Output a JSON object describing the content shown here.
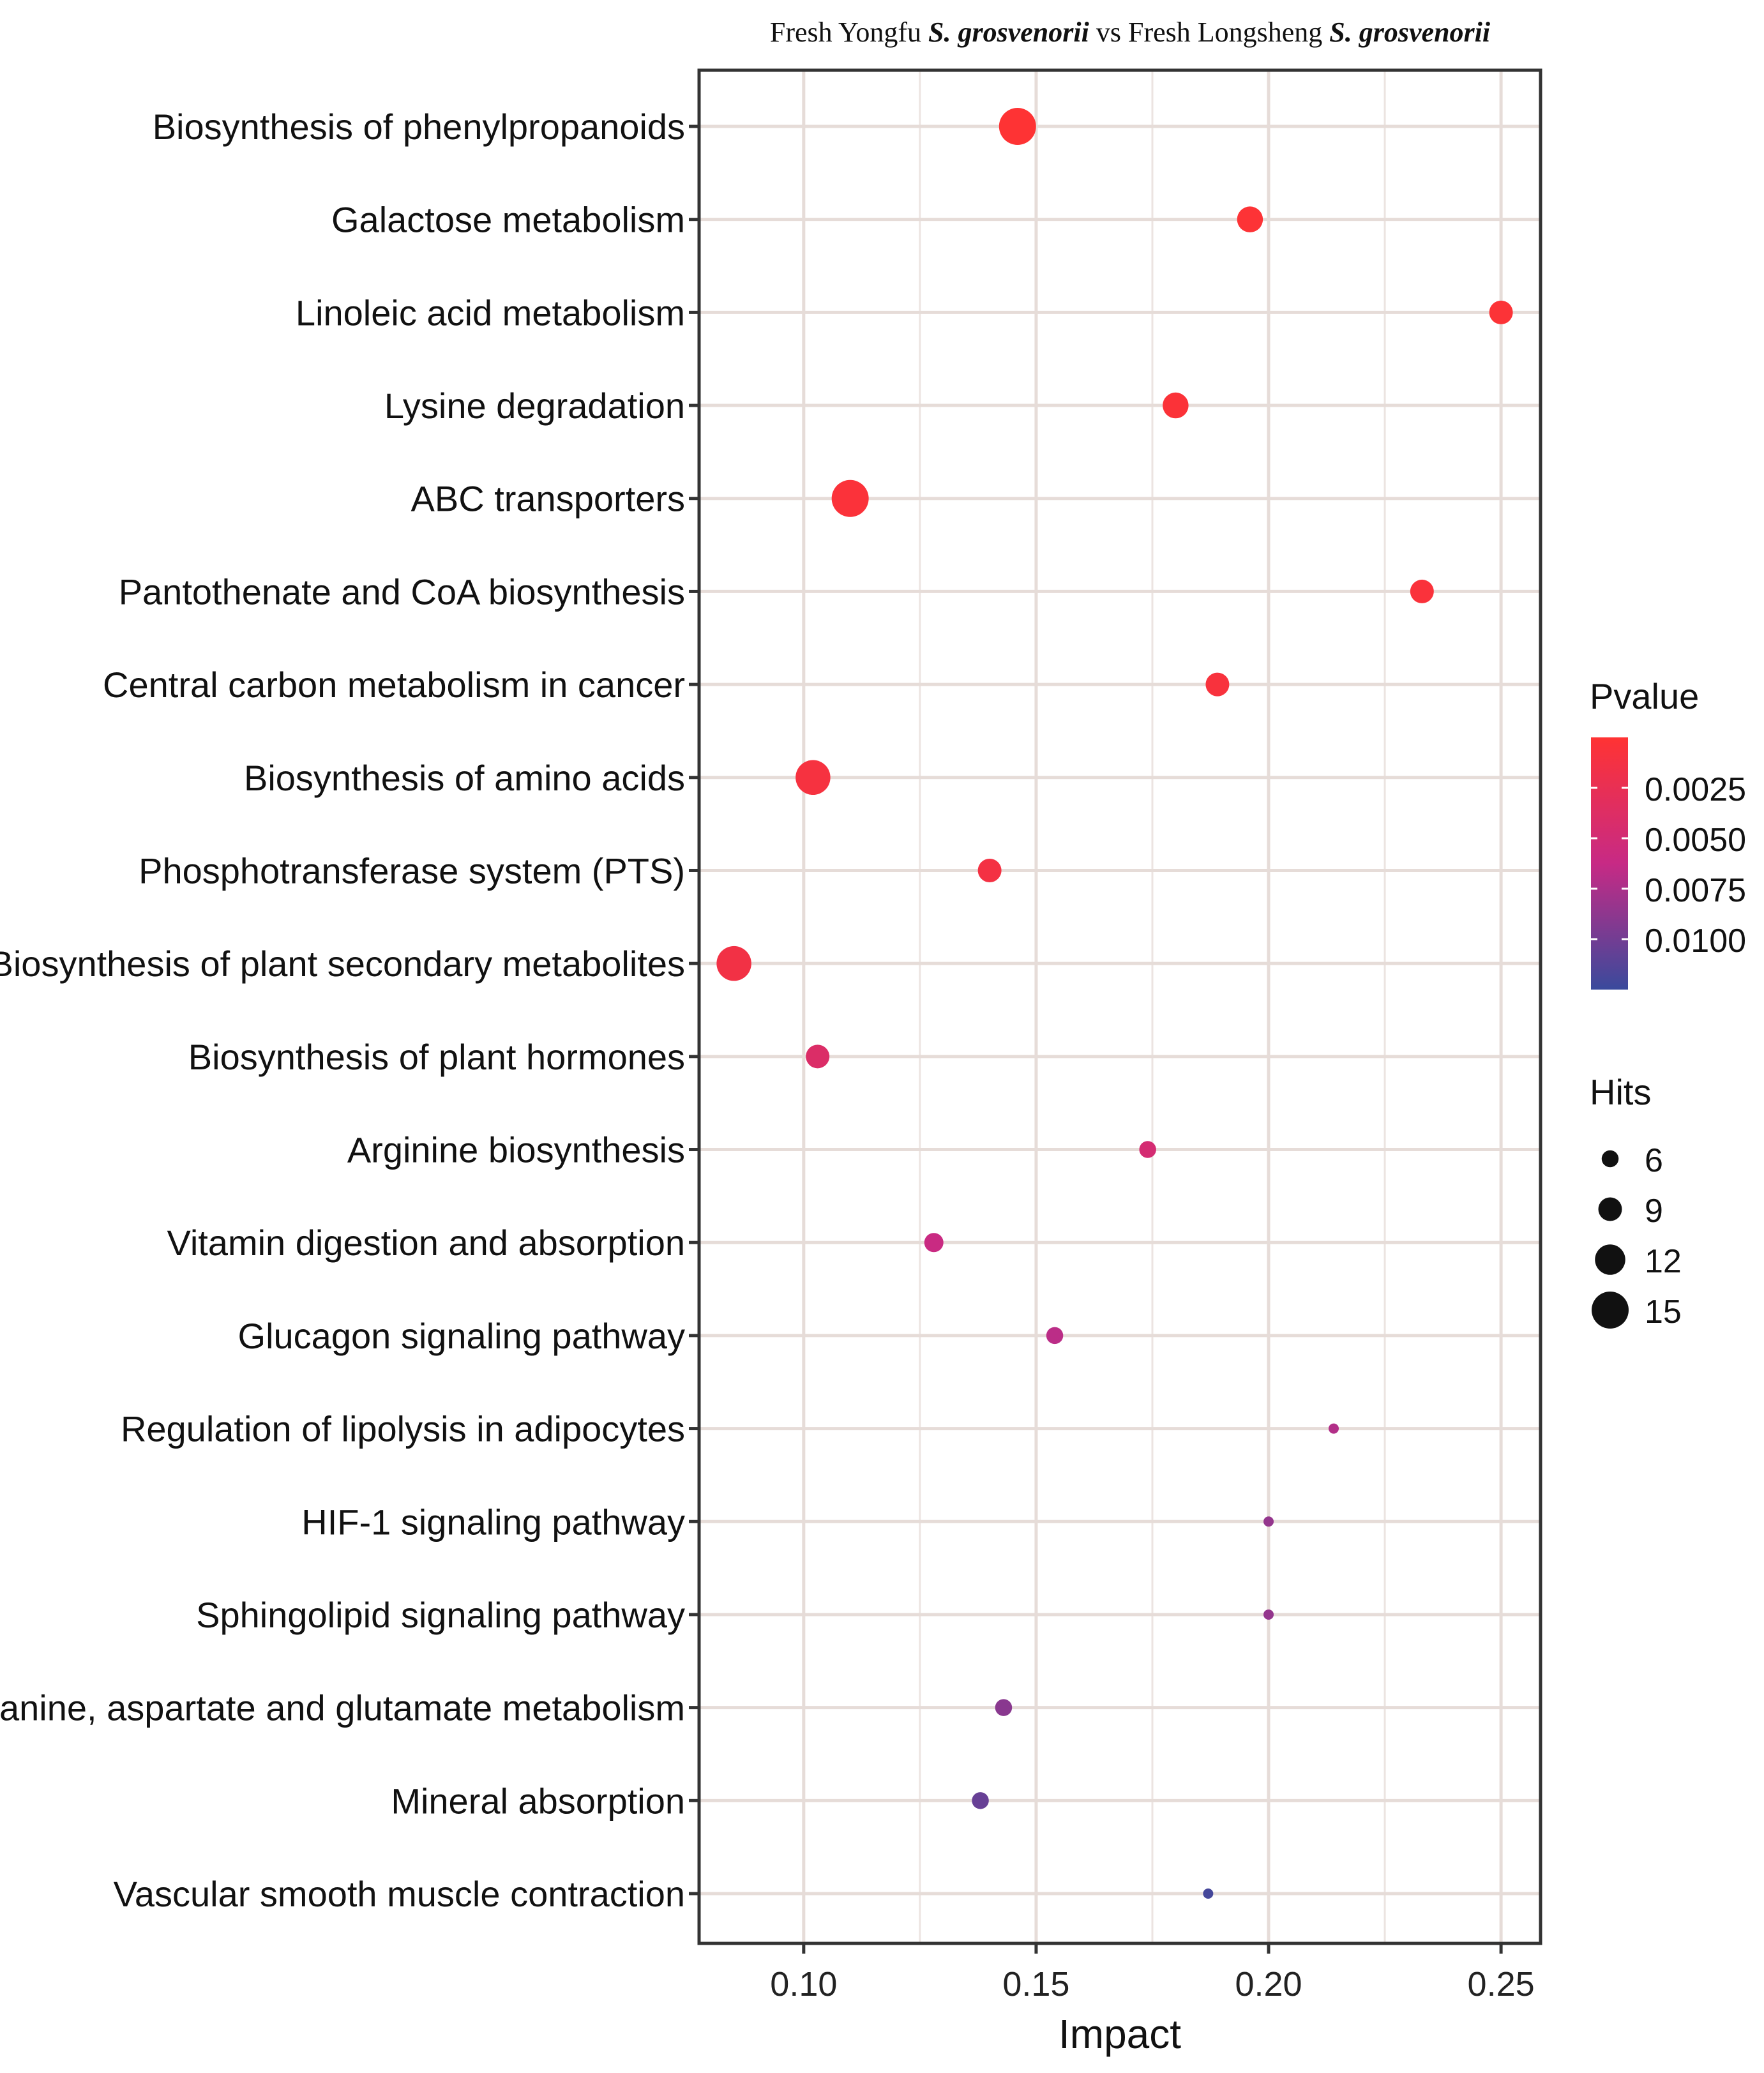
{
  "chart_data": {
    "type": "scatter",
    "title_parts": [
      {
        "text": "Fresh Yongfu ",
        "style": "normal"
      },
      {
        "text": "S. grosvenorii",
        "style": "bold-italic"
      },
      {
        "text": " vs Fresh Longsheng ",
        "style": "normal"
      },
      {
        "text": "S. grosvenorii",
        "style": "bold-italic"
      }
    ],
    "xlabel": "Impact",
    "ylabel": "",
    "xlim": [
      0.0775,
      0.2585
    ],
    "x_ticks": [
      0.1,
      0.15,
      0.2,
      0.25
    ],
    "x_tick_labels": [
      "0.10",
      "0.15",
      "0.20",
      "0.25"
    ],
    "grid": true,
    "points": [
      {
        "pathway": "Biosynthesis of phenylpropanoids",
        "impact": 0.146,
        "pvalue": 0.0001,
        "hits": 15
      },
      {
        "pathway": "Galactose metabolism",
        "impact": 0.196,
        "pvalue": 0.0002,
        "hits": 10
      },
      {
        "pathway": "Linoleic acid metabolism",
        "impact": 0.25,
        "pvalue": 0.0003,
        "hits": 9
      },
      {
        "pathway": "Lysine degradation",
        "impact": 0.18,
        "pvalue": 0.0004,
        "hits": 10
      },
      {
        "pathway": "ABC transporters",
        "impact": 0.11,
        "pvalue": 0.0005,
        "hits": 15
      },
      {
        "pathway": "Pantothenate and CoA biosynthesis",
        "impact": 0.233,
        "pvalue": 0.0006,
        "hits": 9
      },
      {
        "pathway": "Central carbon metabolism in cancer",
        "impact": 0.189,
        "pvalue": 0.0008,
        "hits": 9
      },
      {
        "pathway": "Biosynthesis of amino acids",
        "impact": 0.102,
        "pvalue": 0.001,
        "hits": 14
      },
      {
        "pathway": "Phosphotransferase system (PTS)",
        "impact": 0.14,
        "pvalue": 0.0012,
        "hits": 9
      },
      {
        "pathway": "Biosynthesis of plant secondary metabolites",
        "impact": 0.085,
        "pvalue": 0.0014,
        "hits": 14
      },
      {
        "pathway": "Biosynthesis of plant hormones",
        "impact": 0.103,
        "pvalue": 0.004,
        "hits": 9
      },
      {
        "pathway": "Arginine biosynthesis",
        "impact": 0.174,
        "pvalue": 0.0048,
        "hits": 6
      },
      {
        "pathway": "Vitamin digestion and absorption",
        "impact": 0.128,
        "pvalue": 0.006,
        "hits": 7
      },
      {
        "pathway": "Glucagon signaling pathway",
        "impact": 0.154,
        "pvalue": 0.0068,
        "hits": 6
      },
      {
        "pathway": "Regulation of lipolysis in adipocytes",
        "impact": 0.214,
        "pvalue": 0.0072,
        "hits": 3
      },
      {
        "pathway": "HIF-1 signaling pathway",
        "impact": 0.2,
        "pvalue": 0.0085,
        "hits": 3
      },
      {
        "pathway": "Sphingolipid signaling pathway",
        "impact": 0.2,
        "pvalue": 0.0085,
        "hits": 3
      },
      {
        "pathway": "Alanine, aspartate and glutamate metabolism",
        "impact": 0.143,
        "pvalue": 0.009,
        "hits": 6
      },
      {
        "pathway": "Mineral absorption",
        "impact": 0.138,
        "pvalue": 0.0105,
        "hits": 6
      },
      {
        "pathway": "Vascular smooth muscle contraction",
        "impact": 0.187,
        "pvalue": 0.012,
        "hits": 3
      }
    ],
    "color_legend": {
      "title": "Pvalue",
      "range": [
        0.0,
        0.0125
      ],
      "breaks": [
        0.0025,
        0.005,
        0.0075,
        0.01
      ],
      "break_labels": [
        "0.0025",
        "0.0050",
        "0.0075",
        "0.0100"
      ],
      "low_color": "#ff3333",
      "mid_color": "#c72a85",
      "high_color": "#3a4a9c"
    },
    "size_legend": {
      "title": "Hits",
      "breaks": [
        6,
        9,
        12,
        15
      ],
      "break_labels": [
        "6",
        "9",
        "12",
        "15"
      ]
    }
  }
}
